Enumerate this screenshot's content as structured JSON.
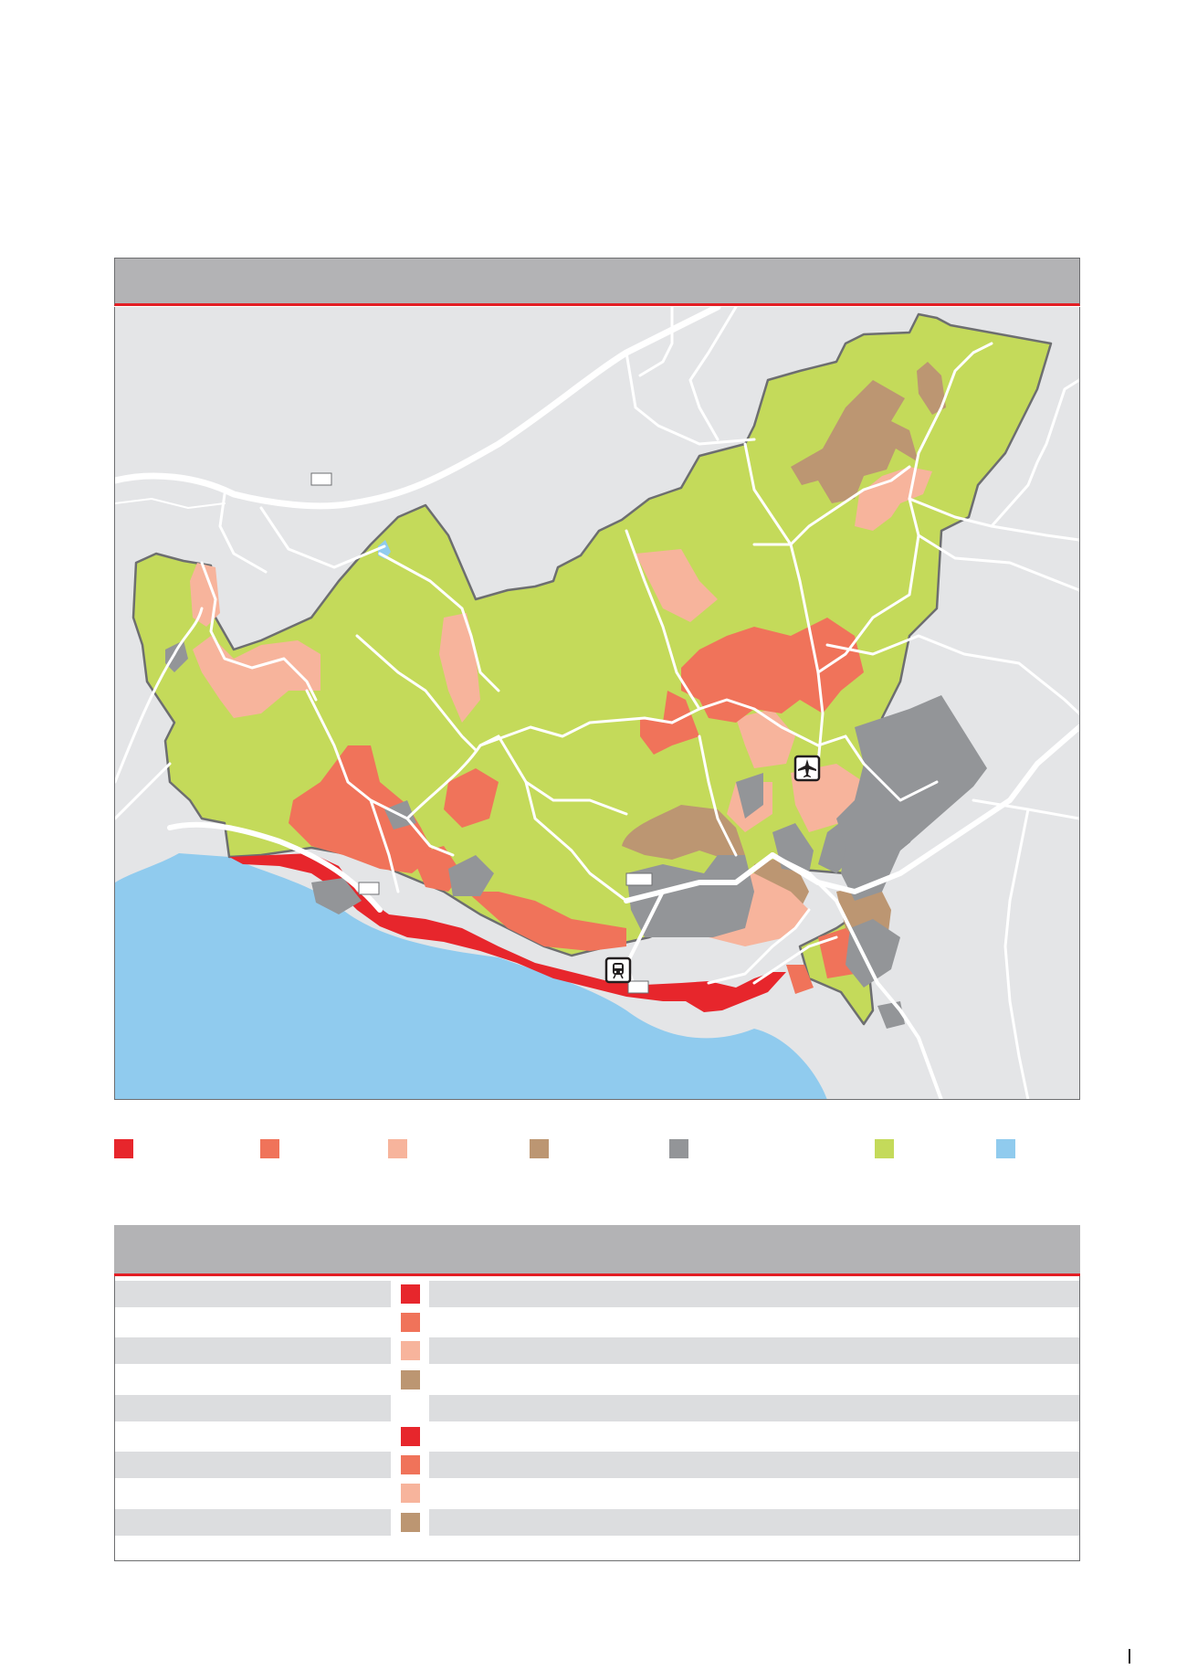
{
  "map": {
    "colors": {
      "sea": "#90cbee",
      "land_background": "#e4e5e7",
      "green_land": "#c4da5a",
      "red": "#e7262c",
      "orange_red": "#f0735a",
      "salmon": "#f7b49c",
      "tan": "#bc9672",
      "grey": "#939598",
      "roads": "#ffffff",
      "boundary": "#6d6e70",
      "header_rule": "#e31e24"
    },
    "icons": [
      "airport-icon",
      "train-station-icon"
    ]
  },
  "legend": {
    "items": [
      {
        "color": "#e7262c"
      },
      {
        "color": "#f0735a"
      },
      {
        "color": "#f7b49c"
      },
      {
        "color": "#bc9672"
      },
      {
        "color": "#939598"
      },
      {
        "color": "#c4da5a"
      },
      {
        "color": "#90cbee"
      }
    ]
  },
  "table": {
    "rows": [
      {
        "swatch": "#e7262c"
      },
      {
        "swatch": "#f0735a"
      },
      {
        "swatch": "#f7b49c"
      },
      {
        "swatch": "#bc9672"
      },
      {
        "swatch": ""
      },
      {
        "swatch": "#e7262c"
      },
      {
        "swatch": "#f0735a"
      },
      {
        "swatch": "#f7b49c"
      },
      {
        "swatch": "#bc9672"
      }
    ]
  }
}
